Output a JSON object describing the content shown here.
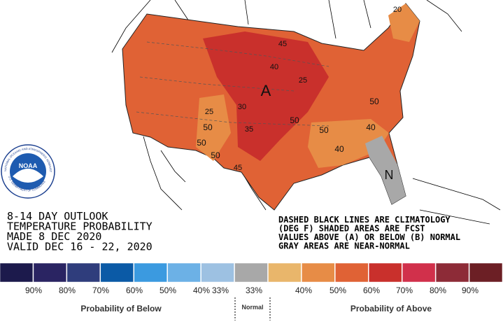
{
  "title_block": {
    "lines": [
      "8-14 DAY OUTLOOK",
      "TEMPERATURE PROBABILITY",
      "MADE  8 DEC 2020",
      "VALID  DEC 16 - 22, 2020"
    ]
  },
  "notes": [
    "DASHED BLACK LINES ARE CLIMATOLOGY",
    "(DEG F) SHADED AREAS ARE FCST",
    "VALUES ABOVE (A) OR BELOW (B) NORMAL",
    "GRAY AREAS ARE NEAR-NORMAL"
  ],
  "logo": {
    "name": "NOAA",
    "top_arc": "NATIONAL OCEANIC AND ATMOSPHERIC ADMINISTRATION",
    "bottom_arc": "U.S. DEPARTMENT OF COMMERCE"
  },
  "map_labels": [
    "A",
    "N",
    "20",
    "45",
    "40",
    "25",
    "30",
    "35",
    "25",
    "50",
    "50",
    "50",
    "45",
    "50",
    "50",
    "50",
    "40",
    "40"
  ],
  "legend": {
    "colors": [
      "#1c1a4c",
      "#2a2462",
      "#2f3d7c",
      "#0b5aa6",
      "#3b9ae0",
      "#6cb1e6",
      "#9dc1e2",
      "#a8a8a8",
      "#e9b66b",
      "#e78c46",
      "#e06235",
      "#c9302c",
      "#d1304b",
      "#8d2b37",
      "#6c1f25"
    ],
    "labels": [
      "90%",
      "80%",
      "70%",
      "60%",
      "50%",
      "40%",
      "33%",
      "33%",
      "40%",
      "50%",
      "60%",
      "70%",
      "80%",
      "90%"
    ],
    "below_title": "Probability of Below",
    "normal_title": "Normal",
    "above_title": "Probability of Above"
  }
}
